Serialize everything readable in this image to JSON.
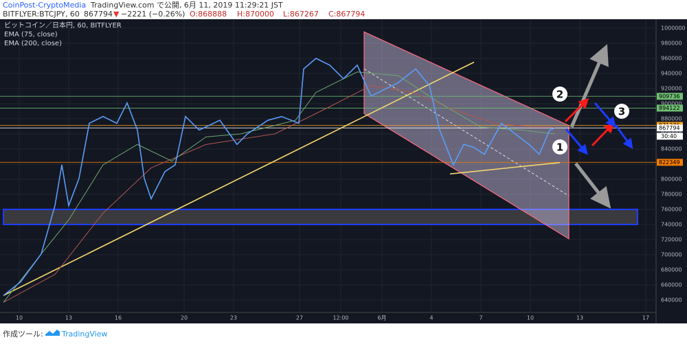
{
  "header": {
    "publisher": "CoinPost-CryptoMedia",
    "published": "TradingView.com で公開, 6月 11, 2019 11:29:21 JST",
    "symbol": "BITFLYER:BTCJPY, 60",
    "last": "867794",
    "direction": "▼",
    "change": "−2221 (−0.26%)",
    "open": "O:868888",
    "high": "H:870000",
    "low": "L:867267",
    "close": "C:867794"
  },
  "footer": {
    "made_with": "作成ツール:",
    "brand": "TradingView"
  },
  "chart_data": {
    "type": "line",
    "xlim": [
      -28,
      927
    ],
    "ylim": [
      623600,
      1011800
    ],
    "xticks": [
      {
        "value": 0,
        "label": "10"
      },
      {
        "value": 72,
        "label": "13"
      },
      {
        "value": 144,
        "label": "16"
      },
      {
        "value": 240,
        "label": "20"
      },
      {
        "value": 312,
        "label": "23"
      },
      {
        "value": 408,
        "label": "27"
      },
      {
        "value": 468,
        "label": "12:00"
      },
      {
        "value": 528,
        "label": "6月"
      },
      {
        "value": 600,
        "label": "4"
      },
      {
        "value": 672,
        "label": "7"
      },
      {
        "value": 744,
        "label": "10"
      },
      {
        "value": 816,
        "label": "13"
      },
      {
        "value": 912,
        "label": "17"
      }
    ],
    "yticks": [
      640000,
      660000,
      680000,
      700000,
      720000,
      740000,
      760000,
      780000,
      800000,
      820000,
      840000,
      860000,
      880000,
      900000,
      920000,
      940000,
      960000,
      980000,
      1000000
    ],
    "grid": true,
    "series": [
      {
        "name": "ビットコイン／日本円, 60, BITFLYER",
        "color": "#5b9cf6",
        "x": [
          -23,
          2,
          32,
          52,
          62,
          72,
          87,
          102,
          122,
          142,
          157,
          172,
          182,
          192,
          212,
          227,
          242,
          262,
          292,
          317,
          332,
          362,
          382,
          407,
          414,
          432,
          452,
          472,
          492,
          512,
          532,
          552,
          577,
          597,
          612,
          632,
          647,
          662,
          677,
          702,
          722,
          742,
          757,
          772,
          780
        ],
        "values": [
          646000,
          664000,
          701000,
          765000,
          819000,
          765000,
          801000,
          874000,
          883000,
          874000,
          901000,
          865000,
          801000,
          774000,
          810000,
          819000,
          883000,
          865000,
          878000,
          846000,
          860000,
          878000,
          883000,
          874000,
          946000,
          960000,
          951000,
          933000,
          951000,
          910000,
          919000,
          928000,
          946000,
          924000,
          865000,
          819000,
          846000,
          842000,
          833000,
          874000,
          860000,
          846000,
          833000,
          865000,
          867794
        ]
      },
      {
        "name": "EMA (75, close)",
        "color": "#6ea86e",
        "x": [
          -23,
          32,
          72,
          122,
          172,
          222,
          272,
          322,
          402,
          432,
          492,
          552,
          612,
          672,
          732,
          780
        ],
        "values": [
          637000,
          701000,
          746000,
          819000,
          846000,
          824000,
          856000,
          860000,
          878000,
          915000,
          942000,
          937000,
          901000,
          869000,
          865000,
          860000
        ]
      },
      {
        "name": "EMA (200, close)",
        "color": "#b0564f",
        "x": [
          -23,
          52,
          122,
          192,
          272,
          372,
          452,
          512,
          572,
          632,
          692,
          752,
          780
        ],
        "values": [
          637000,
          674000,
          755000,
          815000,
          846000,
          860000,
          896000,
          924000,
          915000,
          892000,
          874000,
          869000,
          869000
        ]
      }
    ],
    "hlines": [
      {
        "value": 909736,
        "color": "#6fbf73"
      },
      {
        "value": 894122,
        "color": "#6fbf73"
      },
      {
        "value": 871276,
        "color": "#f5a623"
      },
      {
        "value": 867794,
        "color": "#ffffff"
      },
      {
        "value": 822349,
        "color": "#f57c00"
      }
    ],
    "countdown": "30:40",
    "trendlines": [
      {
        "x": [
          -23,
          662
        ],
        "values": [
          646000,
          955000
        ],
        "color": "#f5d76e"
      },
      {
        "x": [
          627,
          787
        ],
        "values": [
          807000,
          822000
        ],
        "color": "#f5d76e"
      }
    ],
    "channel": {
      "x": [
        502,
        800
      ],
      "upper": [
        995000,
        871000
      ],
      "lower": [
        887000,
        721000
      ],
      "mid": [
        946000,
        778000
      ]
    },
    "zone": {
      "x": [
        -23,
        900
      ],
      "values": [
        740000,
        760000
      ]
    },
    "annotations": [
      "1",
      "2",
      "3"
    ]
  }
}
